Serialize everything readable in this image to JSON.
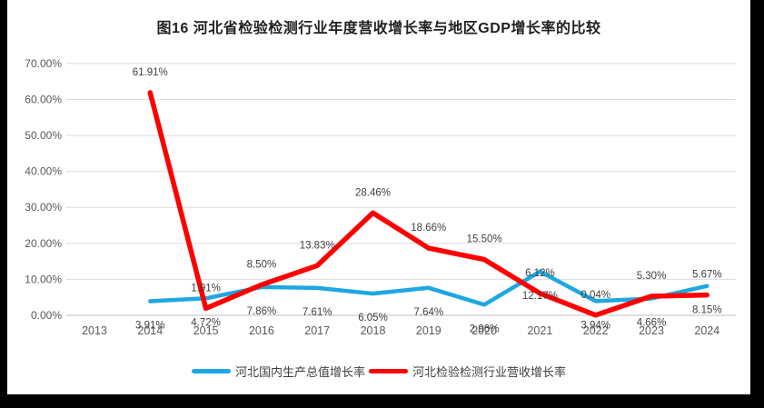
{
  "title": "图16 河北省检验检测行业年度营收增长率与地区GDP增长率的比较",
  "colors": {
    "background": "#000000",
    "card": "#ffffff",
    "gridline": "#dcdcdc",
    "axis_line": "#bfbfbf",
    "tick_text": "#595959",
    "data_label_text": "#3f3f3f",
    "gdp_series": "#1ea7e1",
    "revenue_series": "#fe0000"
  },
  "chart_data": {
    "type": "line",
    "title": "图16 河北省检验检测行业年度营收增长率与地区GDP增长率的比较",
    "categories": [
      "2013",
      "2014",
      "2015",
      "2016",
      "2017",
      "2018",
      "2019",
      "2020",
      "2021",
      "2022",
      "2023",
      "2024"
    ],
    "y_axis": {
      "min": 0,
      "max": 70,
      "step": 10,
      "unit": "%"
    },
    "y_tick_labels": [
      "0.00%",
      "10.00%",
      "20.00%",
      "30.00%",
      "40.00%",
      "50.00%",
      "60.00%",
      "70.00%"
    ],
    "grid": true,
    "legend_position": "bottom",
    "series": [
      {
        "name": "河北国内生产总值增长率",
        "color": "#1ea7e1",
        "label_position": "below",
        "values": [
          null,
          3.91,
          4.72,
          7.86,
          7.61,
          6.05,
          7.64,
          2.96,
          12.17,
          3.94,
          4.66,
          8.15
        ],
        "labels": [
          "",
          "3.91%",
          "4.72%",
          "7.86%",
          "7.61%",
          "6.05%",
          "7.64%",
          "2.96%",
          "12.17%",
          "3.94%",
          "4.66%",
          "8.15%"
        ]
      },
      {
        "name": "河北检验检测行业营收增长率",
        "color": "#fe0000",
        "label_position": "above",
        "values": [
          null,
          61.91,
          1.91,
          8.5,
          13.83,
          28.46,
          18.66,
          15.5,
          6.12,
          0.04,
          5.3,
          5.67
        ],
        "labels": [
          "",
          "61.91%",
          "1.91%",
          "8.50%",
          "13.83%",
          "28.46%",
          "18.66%",
          "15.50%",
          "6.12%",
          "0.04%",
          "5.30%",
          "5.67%"
        ]
      }
    ]
  }
}
